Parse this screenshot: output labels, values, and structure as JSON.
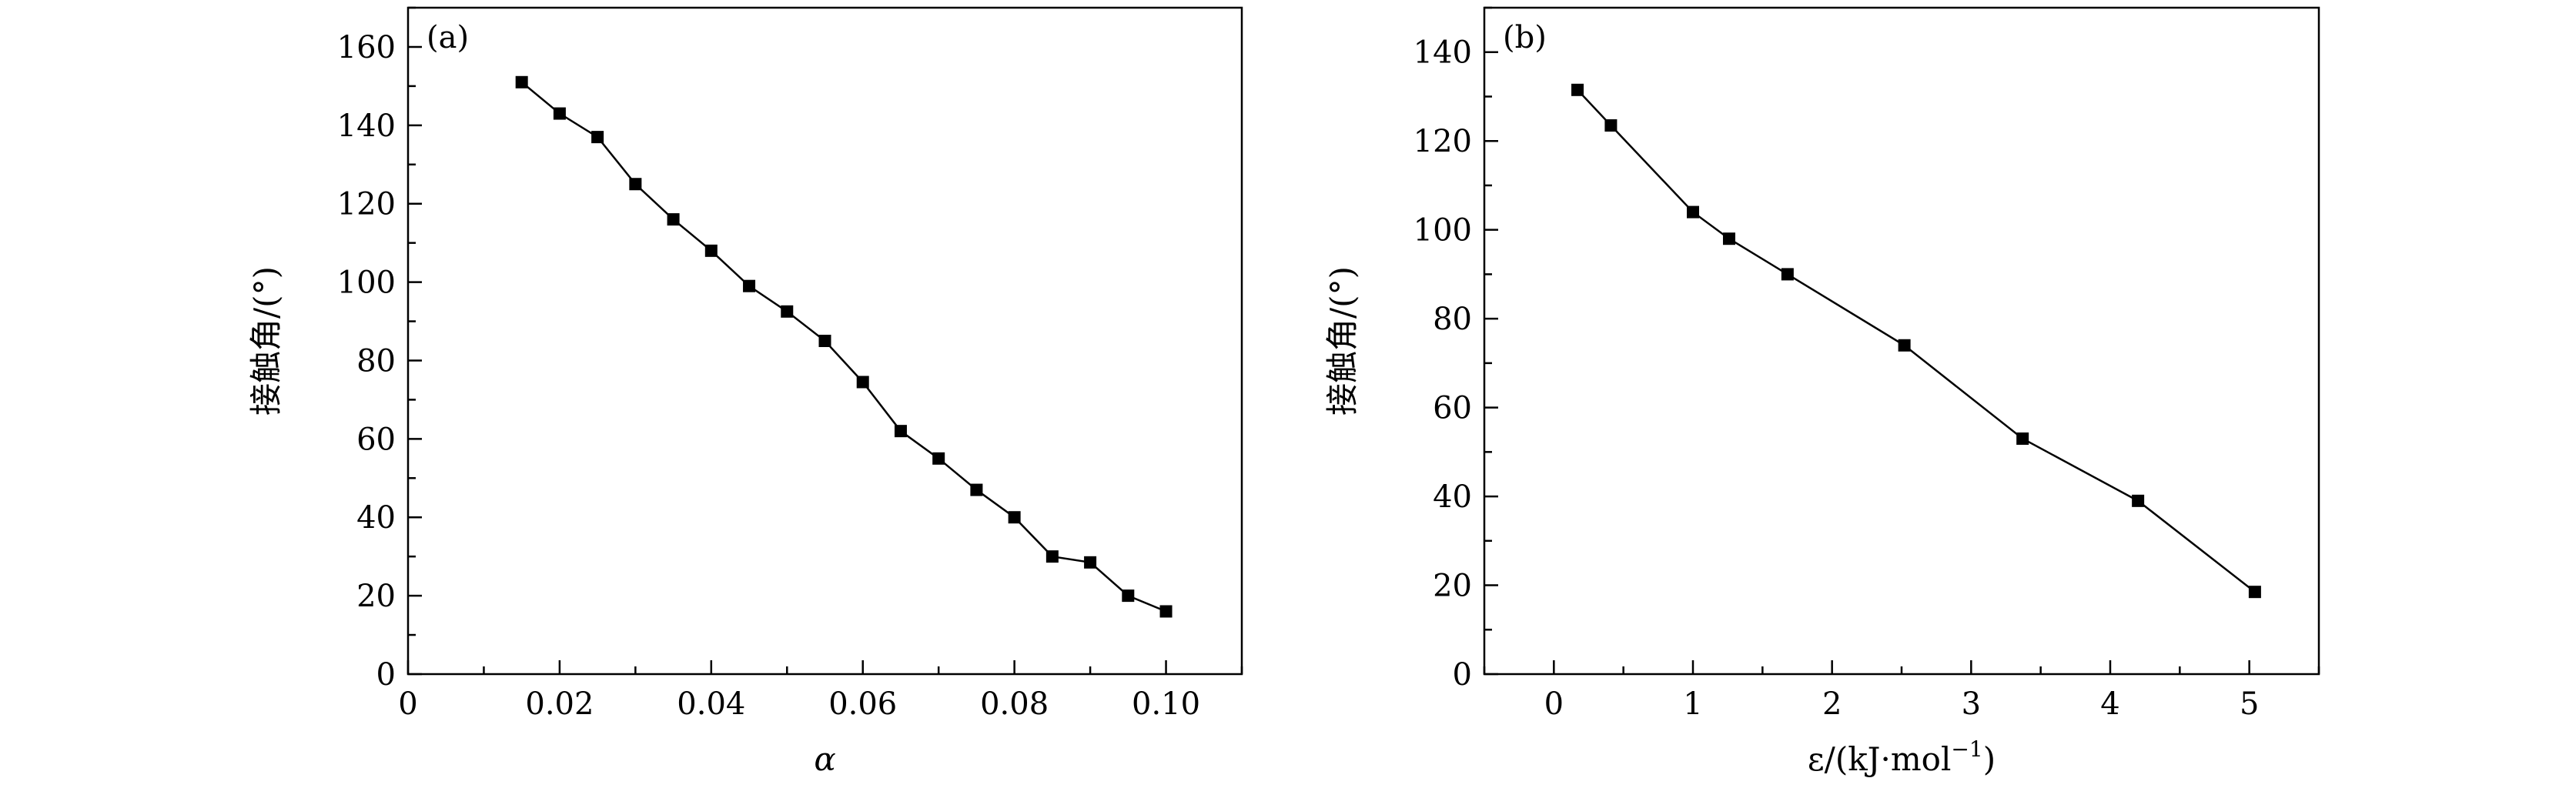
{
  "chart_data": [
    {
      "type": "line",
      "panel_label": "(a)",
      "xlabel": "α",
      "ylabel": "接触角/(°)",
      "xlim": [
        0,
        0.11
      ],
      "ylim": [
        0,
        170
      ],
      "xticks": [
        0,
        0.02,
        0.04,
        0.06,
        0.08,
        0.1
      ],
      "xtick_labels": [
        "0",
        "0.02",
        "0.04",
        "0.06",
        "0.08",
        "0.10"
      ],
      "yticks": [
        0,
        20,
        40,
        60,
        80,
        100,
        120,
        140,
        160
      ],
      "ytick_labels": [
        "0",
        "20",
        "40",
        "60",
        "80",
        "100",
        "120",
        "140",
        "160"
      ],
      "grid": false,
      "marker": "square",
      "color": "#000000",
      "x": [
        0.015,
        0.02,
        0.025,
        0.03,
        0.035,
        0.04,
        0.045,
        0.05,
        0.055,
        0.06,
        0.065,
        0.07,
        0.075,
        0.08,
        0.085,
        0.09,
        0.095,
        0.1
      ],
      "y": [
        151,
        143,
        137,
        125,
        116,
        108,
        99,
        92.5,
        85,
        74.5,
        62,
        55,
        47,
        40,
        30,
        28.5,
        20,
        16
      ]
    },
    {
      "type": "line",
      "panel_label": "(b)",
      "xlabel": "ε/(kJ·mol",
      "xlabel_sup": "−1",
      "xlabel_close": ")",
      "ylabel": "接触角/(°)",
      "xlim": [
        -0.5,
        5.5
      ],
      "ylim": [
        0,
        150
      ],
      "xticks": [
        0,
        1,
        2,
        3,
        4,
        5
      ],
      "xtick_labels": [
        "0",
        "1",
        "2",
        "3",
        "4",
        "5"
      ],
      "yticks": [
        0,
        20,
        40,
        60,
        80,
        100,
        120,
        140
      ],
      "ytick_labels": [
        "0",
        "20",
        "40",
        "60",
        "80",
        "100",
        "120",
        "140"
      ],
      "grid": false,
      "marker": "square",
      "color": "#000000",
      "x": [
        0.17,
        0.41,
        1.0,
        1.26,
        1.68,
        2.52,
        3.37,
        4.2,
        5.04
      ],
      "y": [
        131.5,
        123.5,
        104,
        98,
        90,
        74,
        53,
        39,
        18.5
      ]
    }
  ]
}
